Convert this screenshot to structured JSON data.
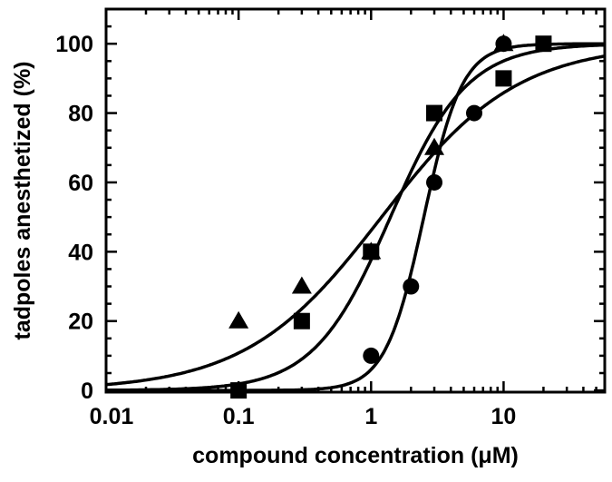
{
  "chart_data": {
    "type": "scatter",
    "title": "",
    "xlabel": "compound concentration (μM)",
    "ylabel": "tadpoles anesthetized (%)",
    "xscale": "log",
    "xlim": [
      0.01,
      58
    ],
    "ylim": [
      -0.5,
      110
    ],
    "xticks": [
      0.01,
      0.1,
      1,
      10
    ],
    "xtick_labels": [
      "0.01",
      "0.1",
      "1",
      "10"
    ],
    "yticks": [
      0,
      20,
      40,
      60,
      80,
      100
    ],
    "ytick_labels": [
      "0",
      "20",
      "40",
      "60",
      "80",
      "100"
    ],
    "grid": false,
    "legend": "none",
    "color": "#000000",
    "series": [
      {
        "marker": "circle",
        "x": [
          1,
          2,
          3,
          6,
          10
        ],
        "y": [
          10,
          30,
          60,
          80,
          100
        ],
        "fit": {
          "ec50": 2.5,
          "hill": 3.0
        }
      },
      {
        "marker": "square",
        "x": [
          0.1,
          0.3,
          1,
          3,
          10,
          20
        ],
        "y": [
          0,
          20,
          40,
          80,
          90,
          100
        ],
        "fit": {
          "ec50": 1.4,
          "hill": 1.5
        }
      },
      {
        "marker": "triangle",
        "x": [
          0.1,
          0.3,
          1,
          3,
          10
        ],
        "y": [
          20,
          30,
          40,
          70,
          100
        ],
        "fit": {
          "ec50": 1.2,
          "hill": 0.85
        }
      }
    ]
  }
}
